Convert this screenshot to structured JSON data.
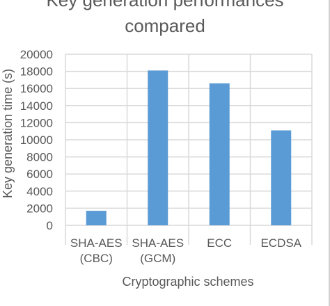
{
  "chart_data": {
    "type": "bar",
    "title_lines": [
      "Key generation performances",
      "compared"
    ],
    "xlabel": "Cryptographic schemes",
    "ylabel": "Key generation time (s)",
    "categories": [
      [
        "SHA-AES",
        "(CBC)"
      ],
      [
        "SHA-AES",
        "(GCM)"
      ],
      [
        "ECC"
      ],
      [
        "ECDSA"
      ]
    ],
    "values": [
      1700,
      18100,
      16600,
      11100
    ],
    "ylim": [
      0,
      20000
    ],
    "yticks": [
      0,
      2000,
      4000,
      6000,
      8000,
      10000,
      12000,
      14000,
      16000,
      18000,
      20000
    ],
    "grid": true,
    "legend": "none",
    "bar_color": "#5b9bd5",
    "grid_color": "#d9d9d9"
  }
}
